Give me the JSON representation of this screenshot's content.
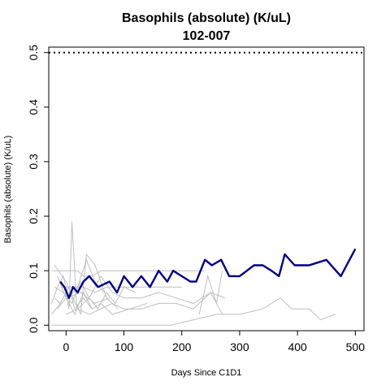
{
  "chart_data": {
    "type": "line",
    "title": "Basophils (absolute) (K/uL)",
    "subtitle": "102-007",
    "xlabel": "Days Since C1D1",
    "ylabel": "Basophils (absolute) (K/uL)",
    "xlim": [
      -30,
      515
    ],
    "ylim": [
      -0.01,
      0.51
    ],
    "x_ticks": [
      0,
      100,
      200,
      300,
      400,
      500
    ],
    "y_ticks": [
      0.0,
      0.1,
      0.2,
      0.3,
      0.4,
      0.5
    ],
    "y_tick_labels": [
      "0.0",
      "0.1",
      "0.2",
      "0.3",
      "0.4",
      "0.5"
    ],
    "reference_line": {
      "y": 0.5,
      "style": "dotted"
    },
    "grid": false,
    "colors": {
      "highlight": "#000080",
      "background_series": "#bebebe",
      "reference": "#000000"
    },
    "highlight_series": {
      "x": [
        -10,
        -3,
        5,
        12,
        20,
        30,
        40,
        55,
        75,
        88,
        100,
        115,
        130,
        145,
        160,
        175,
        185,
        200,
        215,
        225,
        240,
        252,
        268,
        282,
        300,
        325,
        340,
        355,
        368,
        378,
        395,
        420,
        450,
        475,
        500
      ],
      "y": [
        0.08,
        0.07,
        0.05,
        0.07,
        0.06,
        0.08,
        0.09,
        0.07,
        0.08,
        0.06,
        0.09,
        0.07,
        0.09,
        0.07,
        0.1,
        0.08,
        0.1,
        0.09,
        0.08,
        0.08,
        0.12,
        0.11,
        0.12,
        0.09,
        0.09,
        0.11,
        0.11,
        0.1,
        0.09,
        0.13,
        0.11,
        0.11,
        0.12,
        0.09,
        0.14
      ]
    },
    "background_series": [
      {
        "x": [
          -25,
          -10,
          0,
          10,
          20,
          30,
          45,
          60,
          80,
          100,
          130,
          160,
          200,
          240
        ],
        "y": [
          0.1,
          0.1,
          0.1,
          0.1,
          0.1,
          0.09,
          0.09,
          0.1,
          0.1,
          0.1,
          0.1,
          0.1,
          0.1,
          0.1
        ]
      },
      {
        "x": [
          -25,
          -5,
          10,
          30,
          60,
          100,
          140,
          180,
          220,
          260,
          300,
          340,
          370,
          390,
          420,
          440,
          465
        ],
        "y": [
          0.0,
          0.0,
          0.0,
          0.0,
          0.0,
          0.0,
          0.0,
          0.0,
          0.01,
          0.02,
          0.02,
          0.03,
          0.05,
          0.03,
          0.03,
          0.01,
          0.02
        ]
      },
      {
        "x": [
          -20,
          -10,
          0,
          5,
          10,
          18,
          25,
          35,
          50,
          70,
          90
        ],
        "y": [
          0.05,
          0.04,
          0.06,
          0.03,
          0.19,
          0.04,
          0.02,
          0.13,
          0.11,
          0.05,
          0.03
        ]
      },
      {
        "x": [
          -15,
          0,
          15,
          30,
          45,
          60,
          80,
          110,
          140
        ],
        "y": [
          0.03,
          0.05,
          0.02,
          0.06,
          0.03,
          0.04,
          0.02,
          0.03,
          0.04
        ]
      },
      {
        "x": [
          -20,
          -5,
          10,
          25,
          40,
          55,
          70,
          85,
          100,
          120
        ],
        "y": [
          0.07,
          0.06,
          0.04,
          0.08,
          0.05,
          0.03,
          0.06,
          0.04,
          0.07,
          0.06
        ]
      },
      {
        "x": [
          -25,
          -15,
          -5,
          5,
          20,
          35,
          50,
          65
        ],
        "y": [
          0.04,
          0.07,
          0.09,
          0.05,
          0.07,
          0.12,
          0.08,
          0.06
        ]
      },
      {
        "x": [
          0,
          20,
          40,
          60,
          80,
          100,
          130,
          160,
          190,
          220,
          250,
          270
        ],
        "y": [
          0.02,
          0.03,
          0.02,
          0.03,
          0.04,
          0.03,
          0.03,
          0.04,
          0.04,
          0.03,
          0.06,
          0.02
        ]
      },
      {
        "x": [
          100,
          130,
          160,
          190,
          220,
          250,
          275
        ],
        "y": [
          0.05,
          0.05,
          0.06,
          0.05,
          0.04,
          0.06,
          0.05
        ]
      },
      {
        "x": [
          -20,
          0,
          20,
          40,
          60,
          80,
          100
        ],
        "y": [
          0.11,
          0.08,
          0.03,
          0.05,
          0.09,
          0.06,
          0.05
        ]
      },
      {
        "x": [
          -10,
          10,
          30,
          50,
          70,
          100,
          150,
          200
        ],
        "y": [
          0.07,
          0.07,
          0.07,
          0.06,
          0.07,
          0.07,
          0.07,
          0.07
        ]
      },
      {
        "x": [
          -25,
          -10,
          5,
          15,
          30,
          45
        ],
        "y": [
          0.02,
          0.04,
          0.07,
          0.03,
          0.05,
          0.03
        ]
      },
      {
        "x": [
          230,
          245,
          260,
          270
        ],
        "y": [
          0.02,
          0.09,
          0.04,
          0.1
        ]
      },
      {
        "x": [
          -15,
          0,
          25,
          50,
          75
        ],
        "y": [
          0.09,
          0.05,
          0.06,
          0.04,
          0.05
        ]
      }
    ]
  }
}
